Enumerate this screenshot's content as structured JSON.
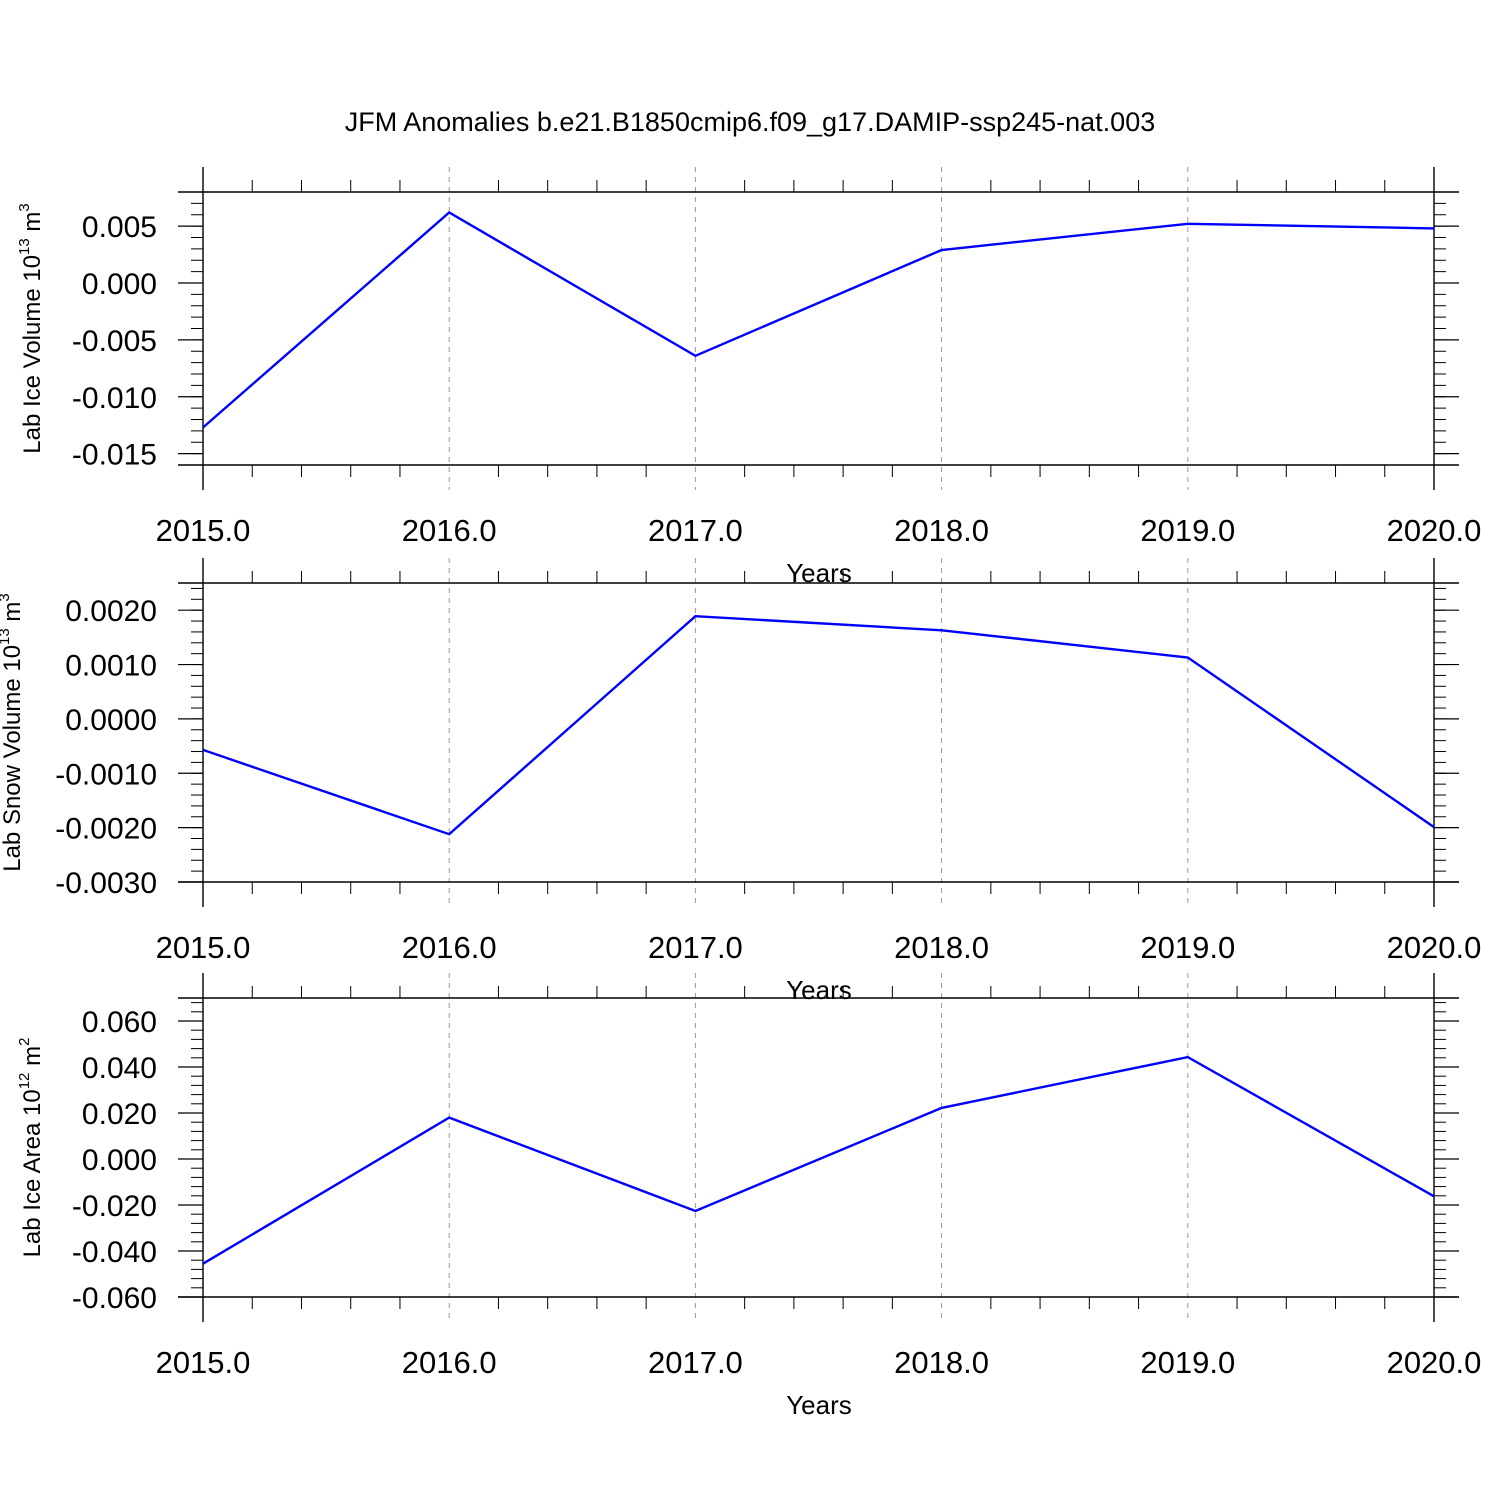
{
  "figure": {
    "title": "JFM Anomalies b.e21.B1850cmip6.f09_g17.DAMIP-ssp245-nat.003"
  },
  "colors": {
    "series_line": "#0000ff",
    "axes": "#000000",
    "gridlines": "#999999"
  },
  "chart_data": [
    {
      "type": "line",
      "title": "",
      "xlabel": "Years",
      "ylabel_main": "Lab Ice Volume 10",
      "ylabel_exp": "13",
      "ylabel_unit": " m",
      "ylabel_unit_exp": "3",
      "xlim": [
        2015.0,
        2020.0
      ],
      "ylim": [
        -0.016,
        0.008
      ],
      "x_ticks": [
        2015.0,
        2016.0,
        2017.0,
        2018.0,
        2019.0,
        2020.0
      ],
      "x_tick_labels": [
        "2015.0",
        "2016.0",
        "2017.0",
        "2018.0",
        "2019.0",
        "2020.0"
      ],
      "y_ticks": [
        -0.015,
        -0.01,
        -0.005,
        0.0,
        0.005
      ],
      "y_tick_labels": [
        "-0.015",
        "-0.010",
        "-0.005",
        "0.000",
        "0.005"
      ],
      "x_grid": "dashed vertical at major ticks",
      "series": [
        {
          "x": [
            2015,
            2016,
            2017,
            2018,
            2019,
            2020
          ],
          "values": [
            -0.0127,
            0.0062,
            -0.0064,
            0.0029,
            0.0052,
            0.0048
          ]
        }
      ]
    },
    {
      "type": "line",
      "title": "",
      "xlabel": "Years",
      "ylabel_main": "Lab Snow Volume 10",
      "ylabel_exp": "13",
      "ylabel_unit": " m",
      "ylabel_unit_exp": "3",
      "xlim": [
        2015.0,
        2020.0
      ],
      "ylim": [
        -0.003,
        0.0025
      ],
      "x_ticks": [
        2015.0,
        2016.0,
        2017.0,
        2018.0,
        2019.0,
        2020.0
      ],
      "x_tick_labels": [
        "2015.0",
        "2016.0",
        "2017.0",
        "2018.0",
        "2019.0",
        "2020.0"
      ],
      "y_ticks": [
        -0.003,
        -0.002,
        -0.001,
        0.0,
        0.001,
        0.002
      ],
      "y_tick_labels": [
        "-0.0030",
        "-0.0020",
        "-0.0010",
        "0.0000",
        "0.0010",
        "0.0020"
      ],
      "x_grid": "dashed vertical at major ticks",
      "series": [
        {
          "x": [
            2015,
            2016,
            2017,
            2018,
            2019,
            2020
          ],
          "values": [
            -0.00057,
            -0.00212,
            0.00189,
            0.00163,
            0.00113,
            -0.00199
          ]
        }
      ]
    },
    {
      "type": "line",
      "title": "",
      "xlabel": "Years",
      "ylabel_main": "Lab Ice Area 10",
      "ylabel_exp": "12",
      "ylabel_unit": " m",
      "ylabel_unit_exp": "2",
      "xlim": [
        2015.0,
        2020.0
      ],
      "ylim": [
        -0.06,
        0.07
      ],
      "x_ticks": [
        2015.0,
        2016.0,
        2017.0,
        2018.0,
        2019.0,
        2020.0
      ],
      "x_tick_labels": [
        "2015.0",
        "2016.0",
        "2017.0",
        "2018.0",
        "2019.0",
        "2020.0"
      ],
      "y_ticks": [
        -0.06,
        -0.04,
        -0.02,
        0.0,
        0.02,
        0.04,
        0.06
      ],
      "y_tick_labels": [
        "-0.060",
        "-0.040",
        "-0.020",
        "0.000",
        "0.020",
        "0.040",
        "0.060"
      ],
      "x_grid": "dashed vertical at major ticks",
      "series": [
        {
          "x": [
            2015,
            2016,
            2017,
            2018,
            2019,
            2020
          ],
          "values": [
            -0.0455,
            0.018,
            -0.0226,
            0.0222,
            0.0443,
            -0.0162
          ]
        }
      ]
    }
  ]
}
